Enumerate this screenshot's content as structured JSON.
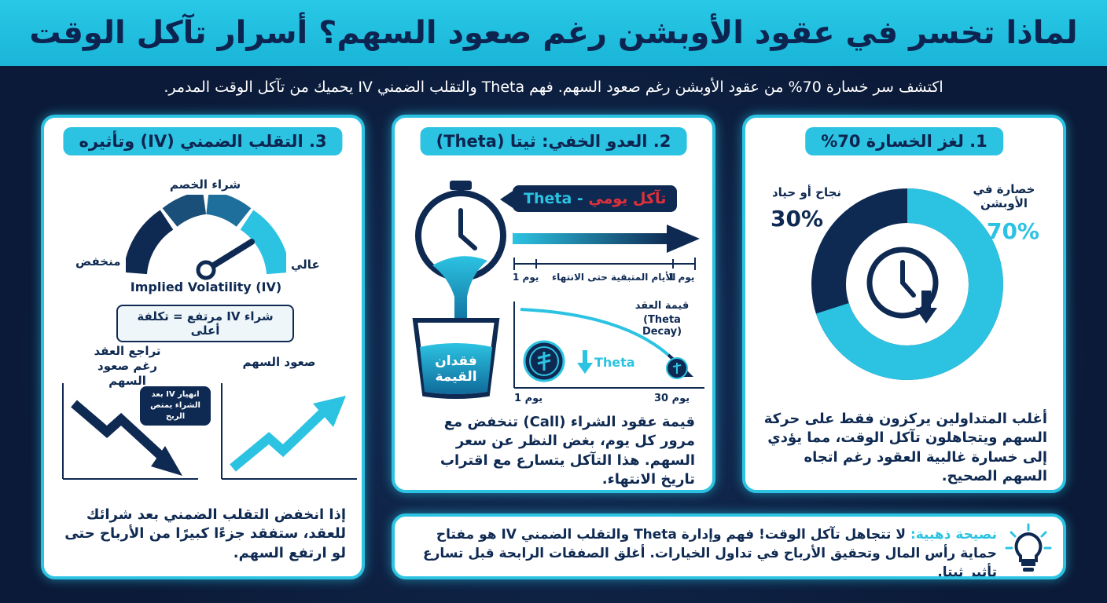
{
  "header": {
    "title": "لماذا تخسر في عقود الأوبشن رغم صعود السهم؟ أسرار تآكل الوقت"
  },
  "subtitle": "اكتشف سر خسارة 70% من عقود الأوبشن رغم صعود السهم. فهم Theta والتقلب الضمني IV يحميك من تآكل الوقت المدمر.",
  "colors": {
    "accent": "#2cc3e2",
    "navy": "#0f2a52",
    "background": "#0c1c3c",
    "red": "#e0303a"
  },
  "card1": {
    "title": "1. لغز الخسارة 70%",
    "loss_label": "خصارة في الأوبشن",
    "loss_value": "70%",
    "win_label": "نجاح أو حياد",
    "win_value": "30%",
    "donut": {
      "loss_fraction": 0.7,
      "win_fraction": 0.3
    },
    "icon": "clock-down-arrow-icon",
    "body": "أغلب المتداولين يركزون فقط على حركة السهم ويتجاهلون تآكل الوقت، مما يؤدي إلى خسارة غالبية العقود رغم اتجاه السهم الصحيح."
  },
  "card2": {
    "title": "2. العدو الخفي: ثيتا (Theta)",
    "tag_theta": "Theta",
    "tag_separator": " - ",
    "tag_decay": "تآكل يومي",
    "timeline_label": "الأيام المتبقية حتى الانتهاء",
    "timeline_day1_left": "يوم 1",
    "timeline_day1_right": "يوم 1",
    "bucket_label": "فقدان القيمة",
    "curve_title": "قيمة العقد",
    "curve_subtitle": "(Theta Decay)",
    "curve_theta": "Theta",
    "axis_start": "يوم 1",
    "axis_end": "يوم 30",
    "body": "قيمة عقود الشراء (Call) تنخفض مع مرور كل يوم، بغض النظر عن سعر السهم. هذا التآكل يتسارع مع اقتراب تاريخ الانتهاء."
  },
  "card3": {
    "title": "3. التقلب الضمني (IV) وتأثيره",
    "gauge_top": "شراء الخصم",
    "gauge_left": "منخفض",
    "gauge_right": "عالي",
    "gauge_caption": "Implied Volatility (IV)",
    "pill": "شراء IV مرتفع = تكلفة أعلى",
    "left_chart_title": "تراجع العقد رغم صعود السهم",
    "bubble": "انهيار IV بعد الشراء يمتص الربح",
    "right_chart_title": "صعود السهم",
    "body": "إذا انخفض التقلب الضمني بعد شرائك للعقد، ستفقد جزءًا كبيرًا من الأرباح حتى لو ارتفع السهم."
  },
  "tip": {
    "label": "نصيحة ذهبية:",
    "text": "لا تتجاهل تآكل الوقت! فهم وإدارة Theta والتقلب الضمني IV هو مفتاح حماية رأس المال وتحقيق الأرباح في تداول الخيارات. أغلق الصفقات الرابحة قبل تسارع تأثير ثيتا.",
    "icon": "lightbulb-icon"
  }
}
